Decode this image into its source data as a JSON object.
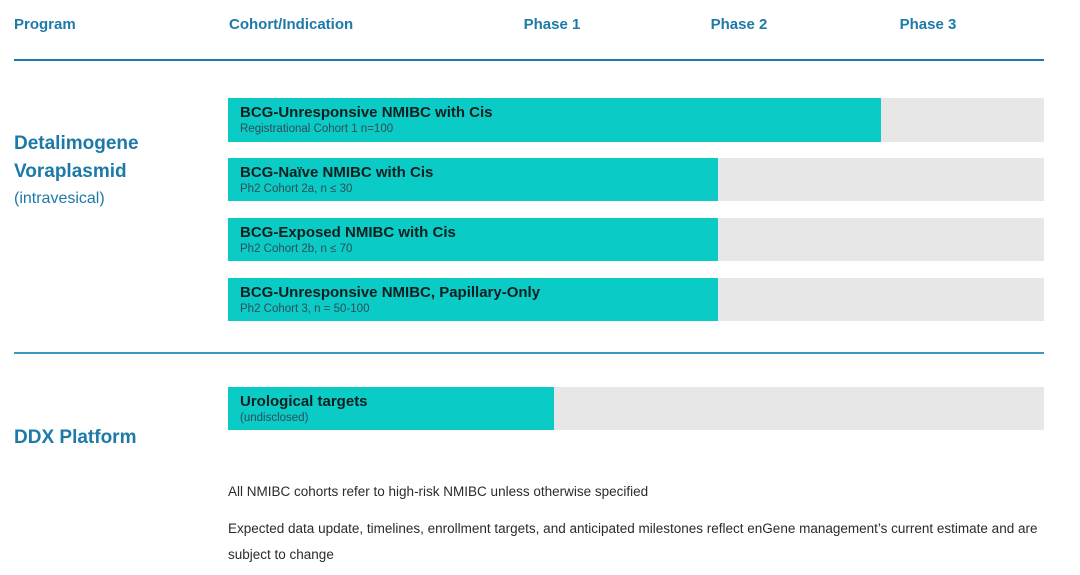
{
  "header": {
    "columns": {
      "program": "Program",
      "cohort": "Cohort/Indication",
      "phase1": "Phase 1",
      "phase2": "Phase 2",
      "phase3": "Phase 3"
    }
  },
  "colors": {
    "accent_blue": "#1d7aa8",
    "bar_teal": "#0bcbc6",
    "track_gray": "#e7e7e7"
  },
  "programs": [
    {
      "name": "Detalimogene\nVoraplasmid",
      "qualifier": "(intravesical)",
      "cohorts": [
        {
          "title": "BCG-Unresponsive NMIBC with Cis",
          "subtitle": "Registrational Cohort 1 n=100",
          "progress_pct": 80
        },
        {
          "title": "BCG-Naïve NMIBC with Cis",
          "subtitle": "Ph2 Cohort 2a, n ≤ 30",
          "progress_pct": 60
        },
        {
          "title": "BCG-Exposed NMIBC with Cis",
          "subtitle": "Ph2 Cohort 2b, n ≤ 70",
          "progress_pct": 60
        },
        {
          "title": "BCG-Unresponsive NMIBC, Papillary-Only",
          "subtitle": "Ph2 Cohort 3, n = 50-100",
          "progress_pct": 60
        }
      ]
    },
    {
      "name": "DDX Platform",
      "qualifier": "",
      "cohorts": [
        {
          "title": "Urological targets",
          "subtitle": "(undisclosed)",
          "progress_pct": 40
        }
      ]
    }
  ],
  "footnotes": [
    "All NMIBC cohorts refer to high-risk NMIBC unless otherwise specified",
    "Expected data update, timelines, enrollment targets, and anticipated milestones reflect enGene management’s current estimate and are subject to change"
  ],
  "chart_data": {
    "type": "bar",
    "orientation": "horizontal-gantt",
    "title": "Clinical pipeline",
    "columns": [
      "Program",
      "Cohort/Indication",
      "Phase 1",
      "Phase 2",
      "Phase 3"
    ],
    "track_range": [
      0,
      1
    ],
    "phase_label_positions_on_track": {
      "Phase 1": 0.4,
      "Phase 2": 0.63,
      "Phase 3": 0.86
    },
    "series": [
      {
        "program": "Detalimogene Voraplasmid (intravesical)",
        "cohort": "BCG-Unresponsive NMIBC with Cis",
        "detail": "Registrational Cohort 1 n=100",
        "bar_fraction_of_track": 0.8
      },
      {
        "program": "Detalimogene Voraplasmid (intravesical)",
        "cohort": "BCG-Naïve NMIBC with Cis",
        "detail": "Ph2 Cohort 2a, n ≤ 30",
        "bar_fraction_of_track": 0.6
      },
      {
        "program": "Detalimogene Voraplasmid (intravesical)",
        "cohort": "BCG-Exposed NMIBC with Cis",
        "detail": "Ph2 Cohort 2b, n ≤ 70",
        "bar_fraction_of_track": 0.6
      },
      {
        "program": "Detalimogene Voraplasmid (intravesical)",
        "cohort": "BCG-Unresponsive NMIBC, Papillary-Only",
        "detail": "Ph2 Cohort 3, n = 50-100",
        "bar_fraction_of_track": 0.6
      },
      {
        "program": "DDX Platform",
        "cohort": "Urological targets",
        "detail": "(undisclosed)",
        "bar_fraction_of_track": 0.4
      }
    ],
    "legend": "none",
    "grid": "off",
    "bar_color": "#0bcbc6",
    "track_color": "#e7e7e7"
  }
}
